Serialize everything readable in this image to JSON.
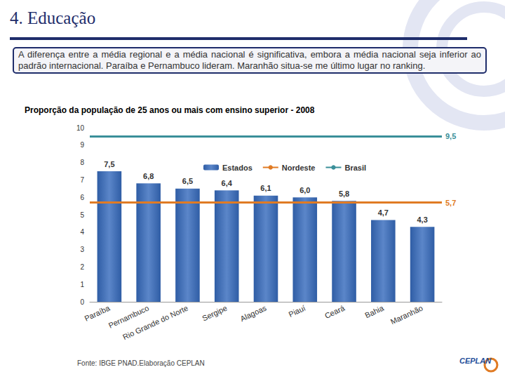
{
  "header": "4. Educação",
  "summary": "A diferença entre a média regional e a média nacional é significativa, embora a média nacional seja inferior ao padrão internacional. Paraíba e Pernambuco lideram. Maranhão situa-se me último lugar no ranking.",
  "source": "Fonte: IBGE PNAD.Elaboração CEPLAN",
  "logo": "CEPLAN",
  "chart_data": {
    "type": "bar",
    "title": "Proporção da população de 25 anos ou mais com ensino superior - 2008",
    "categories": [
      "Paraíba",
      "Pernambuco",
      "Rio Grande do Norte",
      "Sergipe",
      "Alagoas",
      "Piauí",
      "Ceará",
      "Bahia",
      "Maranhão"
    ],
    "series": [
      {
        "name": "Estados",
        "type": "bar",
        "color": "#2F5DA5",
        "values": [
          7.5,
          6.8,
          6.5,
          6.4,
          6.1,
          6.0,
          5.8,
          4.7,
          4.3
        ],
        "value_labels": [
          "7,5",
          "6,8",
          "6,5",
          "6,4",
          "6,1",
          "6,0",
          "5,8",
          "4,7",
          "4,3"
        ]
      },
      {
        "name": "Nordeste",
        "type": "hline",
        "color": "#E07B24",
        "value": 5.7,
        "value_label": "5,7"
      },
      {
        "name": "Brasil",
        "type": "hline",
        "color": "#3A8F99",
        "value": 9.5,
        "value_label": "9,5"
      }
    ],
    "ylim": [
      0,
      10
    ],
    "yticks": [
      0,
      1,
      2,
      3,
      4,
      5,
      6,
      7,
      8,
      9,
      10
    ],
    "grid": false,
    "legend": "top",
    "data_labels": true
  }
}
